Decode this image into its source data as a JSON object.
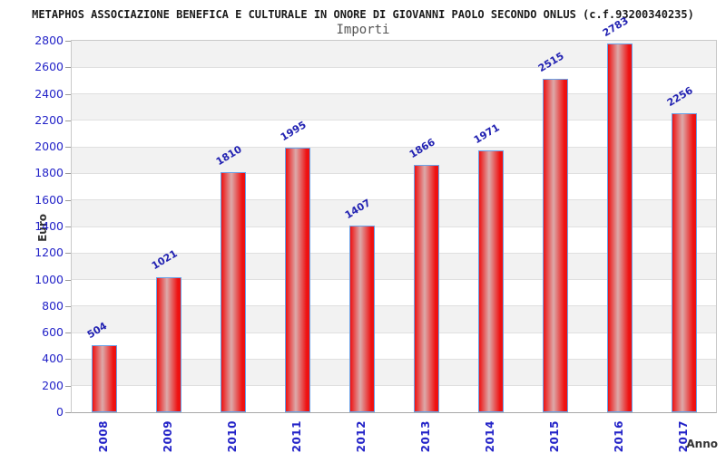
{
  "header": {
    "title": "METAPHOS ASSOCIAZIONE BENEFICA E CULTURALE IN ONORE DI GIOVANNI PAOLO SECONDO ONLUS (c.f.93200340235)",
    "subtitle": "Importi"
  },
  "chart_data": {
    "type": "bar",
    "title": "METAPHOS ASSOCIAZIONE BENEFICA E CULTURALE IN ONORE DI GIOVANNI PAOLO SECONDO ONLUS (c.f.93200340235)",
    "subtitle": "Importi",
    "xlabel": "Anno",
    "ylabel": "Euro",
    "categories": [
      "2008",
      "2009",
      "2010",
      "2011",
      "2012",
      "2013",
      "2014",
      "2015",
      "2016",
      "2017"
    ],
    "values": [
      504,
      1021,
      1810,
      1995,
      1407,
      1866,
      1971,
      2515,
      2783,
      2256
    ],
    "ylim": [
      0,
      2800
    ],
    "y_ticks": [
      0,
      200,
      400,
      600,
      800,
      1000,
      1200,
      1400,
      1600,
      1800,
      2000,
      2200,
      2400,
      2600,
      2800
    ],
    "grid": "horizontal-bands",
    "legend": "none",
    "colors": {
      "title_text": "#1a1a1a",
      "subtitle_text": "#555555",
      "tick_text": "#2323c8",
      "value_label_text": "#2222b2",
      "bar_red": "#ee1111",
      "bar_highlight": "#dcaaaa",
      "bar_border": "#6aa2e8",
      "band_gray": "#f2f2f2",
      "band_white": "#ffffff",
      "gridline": "#e0e0e0",
      "tick_mark": "#999999",
      "axis_label_text": "#333333"
    }
  }
}
